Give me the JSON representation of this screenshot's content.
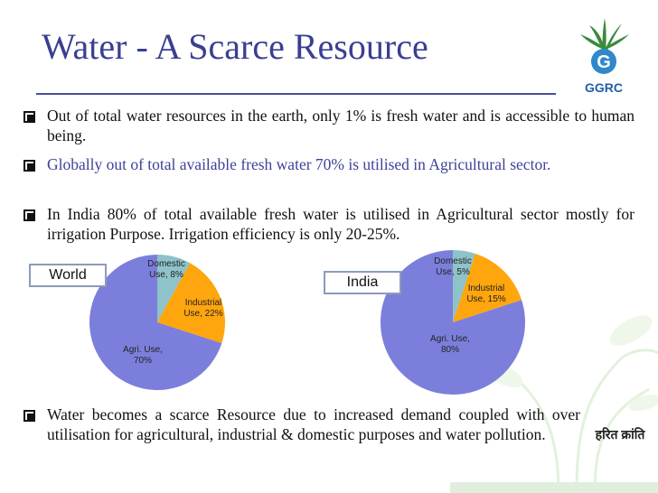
{
  "slide": {
    "title": "Water - A Scarce Resource",
    "logo_text": "GGRC",
    "logo_letter": "G",
    "bullets": [
      "Out of total water resources in the earth, only 1% is fresh water and is accessible to human being.",
      "Globally out of total available fresh water 70% is utilised in Agricultural sector.",
      "In India 80% of total available fresh water is utilised in Agricultural sector mostly for irrigation Purpose. Irrigation efficiency is only 20-25%.",
      "Water becomes a scarce Resource due to increased demand coupled with over utilisation for agricultural, industrial & domestic purposes and water pollution."
    ],
    "bullet_colors": [
      "#111111",
      "#3d4299",
      "#111111",
      "#111111"
    ],
    "stamp_text": "हरित क्रांति"
  },
  "colors": {
    "title": "#3a3f92",
    "domestic": "#8dc3c9",
    "industrial": "#ffa50d",
    "agri": "#7b7fdb"
  },
  "chart_data": [
    {
      "type": "pie",
      "title": "World",
      "categories": [
        "Domestic Use",
        "Industrial Use",
        "Agri. Use"
      ],
      "values": [
        8,
        22,
        70
      ],
      "labels": [
        [
          "Domestic",
          "Use, 8%"
        ],
        [
          "Industrial",
          "Use, 22%"
        ],
        [
          "Agri. Use,",
          "70%"
        ]
      ]
    },
    {
      "type": "pie",
      "title": "India",
      "categories": [
        "Domestic Use",
        "Industrial Use",
        "Agri. Use"
      ],
      "values": [
        5,
        15,
        80
      ],
      "labels": [
        [
          "Domestic",
          "Use, 5%"
        ],
        [
          "Industrial",
          "Use, 15%"
        ],
        [
          "Agri. Use,",
          "80%"
        ]
      ]
    }
  ]
}
